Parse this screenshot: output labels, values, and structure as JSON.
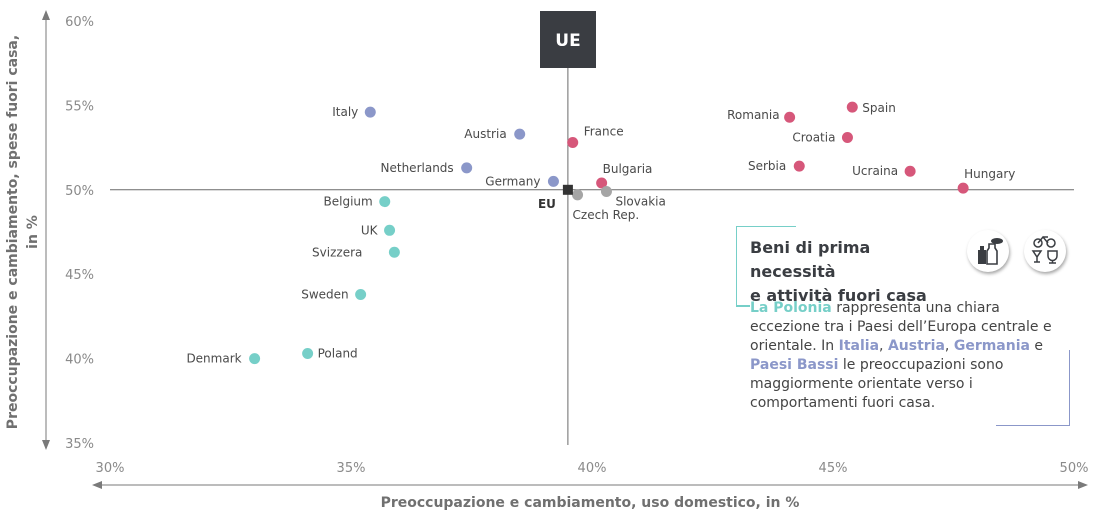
{
  "chart_data": {
    "type": "scatter",
    "xlabel": "Preoccupazione e cambiamento, uso domestico, in %",
    "ylabel_line1": "Preoccupazione e cambiamento, spese fuori casa,",
    "ylabel_line2": "in %",
    "xlim": [
      30,
      50
    ],
    "ylim": [
      35,
      60
    ],
    "x_ticks": [
      "30%",
      "35%",
      "40%",
      "45%",
      "50%"
    ],
    "y_ticks": [
      "35%",
      "40%",
      "45%",
      "50%",
      "55%",
      "60%"
    ],
    "reference": {
      "label": "EU",
      "x": 39.5,
      "y": 50.0
    },
    "quadrant_label": "UE",
    "colors": {
      "teal": "#76cfc8",
      "blue": "#8b97c9",
      "pink": "#d6577a",
      "gray": "#a5a5a5",
      "eu": "#333333"
    },
    "points": [
      {
        "name": "Italy",
        "x": 35.4,
        "y": 54.6,
        "group": "blue"
      },
      {
        "name": "Austria",
        "x": 38.5,
        "y": 53.3,
        "group": "blue"
      },
      {
        "name": "Netherlands",
        "x": 37.4,
        "y": 51.3,
        "group": "blue"
      },
      {
        "name": "Germany",
        "x": 39.2,
        "y": 50.5,
        "group": "blue"
      },
      {
        "name": "France",
        "x": 39.6,
        "y": 52.8,
        "group": "pink"
      },
      {
        "name": "Bulgaria",
        "x": 40.2,
        "y": 50.4,
        "group": "pink"
      },
      {
        "name": "Romania",
        "x": 44.1,
        "y": 54.3,
        "group": "pink"
      },
      {
        "name": "Spain",
        "x": 45.4,
        "y": 54.9,
        "group": "pink"
      },
      {
        "name": "Croatia",
        "x": 45.3,
        "y": 53.1,
        "group": "pink"
      },
      {
        "name": "Serbia",
        "x": 44.3,
        "y": 51.4,
        "group": "pink"
      },
      {
        "name": "Ucraina",
        "x": 46.6,
        "y": 51.1,
        "group": "pink"
      },
      {
        "name": "Hungary",
        "x": 47.7,
        "y": 50.1,
        "group": "pink"
      },
      {
        "name": "Slovakia",
        "x": 40.3,
        "y": 49.9,
        "group": "gray"
      },
      {
        "name": "Czech Rep.",
        "x": 39.7,
        "y": 49.7,
        "group": "gray"
      },
      {
        "name": "Belgium",
        "x": 35.7,
        "y": 49.3,
        "group": "teal"
      },
      {
        "name": "UK",
        "x": 35.8,
        "y": 47.6,
        "group": "teal"
      },
      {
        "name": "Svizzera",
        "x": 35.9,
        "y": 46.3,
        "group": "teal"
      },
      {
        "name": "Sweden",
        "x": 35.2,
        "y": 43.8,
        "group": "teal"
      },
      {
        "name": "Poland",
        "x": 34.1,
        "y": 40.3,
        "group": "teal"
      },
      {
        "name": "Denmark",
        "x": 33.0,
        "y": 40.0,
        "group": "teal"
      }
    ]
  },
  "info": {
    "title_line1": "Beni di prima necessità",
    "title_line2": "e attività fuori casa",
    "t1": "La Polonia",
    "t2": " rappresenta una chiara eccezione tra i Paesi dell’Europa centrale e orientale. In ",
    "t3": "Italia",
    "t4": ", ",
    "t5": "Austria",
    "t6": ", ",
    "t7": "Germania",
    "t8": " e ",
    "t9": "Paesi Bassi",
    "t10": " le preoccupazioni sono maggiormente orientate verso i comportamenti fuori casa.",
    "icon_left": "grocery-icon",
    "icon_right": "leisure-icon"
  }
}
